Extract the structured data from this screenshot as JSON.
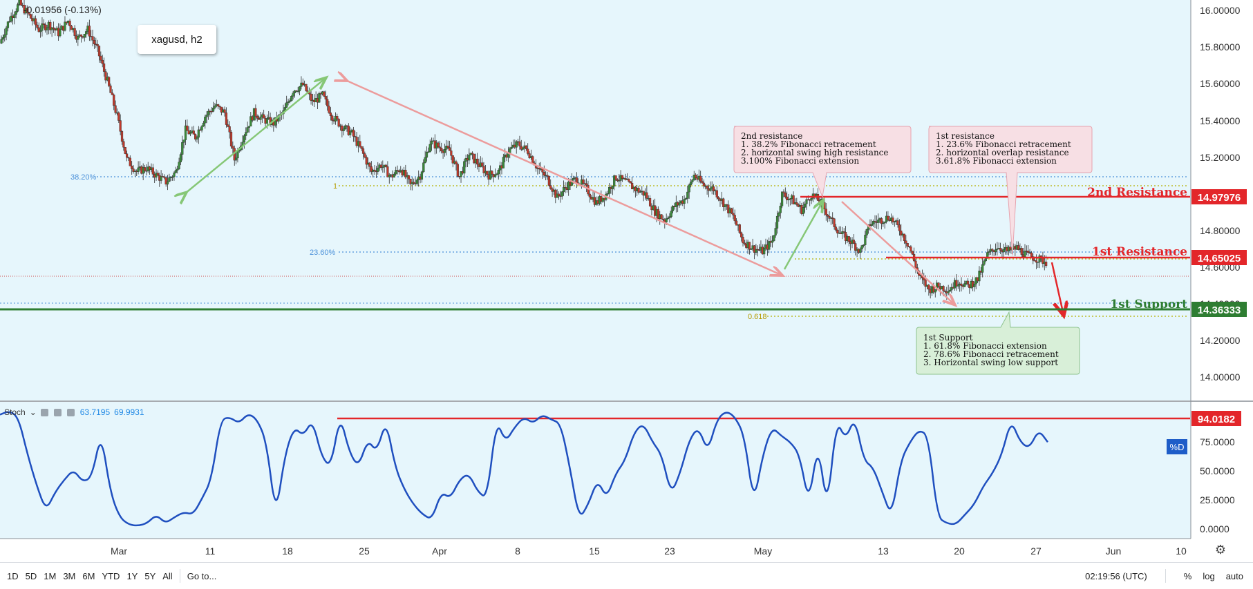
{
  "header": {
    "change_text": "-0.01956 (-0.13%)",
    "symbol": "xagusd, h2"
  },
  "stoch_legend": {
    "name": "Stoch",
    "value1": "63.7195",
    "value2": "69.9931"
  },
  "colors": {
    "background": "#e6f6fc",
    "up": "#3a8a3a",
    "down": "#c0392b",
    "resistance": "#e3262a",
    "support": "#2e7d32",
    "stoch_line": "#1f4fbf",
    "fib_blue": "#4a90d9",
    "fib_gold": "#b59b00"
  },
  "chart_data": [
    {
      "type": "candlestick",
      "title": "xagusd, h2",
      "x_ticks": [
        "Mar",
        "11",
        "18",
        "25",
        "Apr",
        "8",
        "15",
        "23",
        "May",
        "13",
        "20",
        "27",
        "Jun",
        "10"
      ],
      "y_ticks": [
        "16.00000",
        "15.80000",
        "15.60000",
        "15.40000",
        "15.20000",
        "14.80000",
        "14.60000",
        "14.40000",
        "14.20000",
        "14.00000"
      ],
      "ylim": [
        13.88,
        16.03
      ],
      "close_path": [
        15.82,
        15.96,
        16.05,
        15.98,
        15.9,
        15.93,
        15.88,
        15.95,
        15.85,
        15.9,
        15.78,
        15.6,
        15.4,
        15.15,
        15.08,
        15.1,
        15.06,
        15.02,
        15.08,
        15.32,
        15.28,
        15.4,
        15.46,
        15.42,
        15.15,
        15.3,
        15.42,
        15.38,
        15.36,
        15.42,
        15.55,
        15.58,
        15.48,
        15.52,
        15.4,
        15.34,
        15.3,
        15.2,
        15.08,
        15.12,
        15.05,
        15.1,
        15.0,
        15.06,
        15.25,
        15.22,
        15.2,
        15.05,
        15.18,
        15.12,
        15.06,
        15.08,
        15.2,
        15.24,
        15.2,
        15.1,
        15.04,
        14.93,
        15.0,
        15.04,
        14.98,
        14.9,
        14.95,
        15.05,
        15.02,
        14.98,
        14.95,
        14.85,
        14.8,
        14.88,
        14.92,
        15.06,
        15.0,
        14.98,
        14.9,
        14.82,
        14.68,
        14.64,
        14.62,
        14.68,
        14.95,
        14.92,
        14.86,
        14.95,
        14.9,
        14.8,
        14.72,
        14.68,
        14.62,
        14.78,
        14.8,
        14.82,
        14.75,
        14.65,
        14.48,
        14.4,
        14.42,
        14.4,
        14.45,
        14.42,
        14.46,
        14.6,
        14.65,
        14.62,
        14.64,
        14.6,
        14.58,
        14.56
      ],
      "levels": [
        {
          "label": "2nd Resistance",
          "value": 14.97976,
          "value_text": "14.97976"
        },
        {
          "label": "1st Resistance",
          "value": 14.65025,
          "value_text": "14.65025"
        },
        {
          "label": "1st Support",
          "value": 14.36333,
          "value_text": "14.36333"
        }
      ],
      "fib_levels": [
        {
          "label": "38.20%",
          "value": 15.085
        },
        {
          "label": "1",
          "value": 15.035
        },
        {
          "label": "23.60%",
          "value": 14.665
        },
        {
          "label": "0.618",
          "value": 14.325
        }
      ],
      "current_price_line": 14.535,
      "annotations": [
        {
          "lines": [
            "2nd resistance",
            "1. 38.2% Fibonacci retracement",
            "2. horizontal swing high resistance",
            "3.100% Fibonacci extension"
          ]
        },
        {
          "lines": [
            "1st resistance",
            "1. 23.6% Fibonacci retracement",
            "2. horizontal overlap resistance",
            "3.61.8% Fibonacci extension"
          ]
        },
        {
          "lines": [
            "1st Support",
            "1. 61.8% Fibonacci extension",
            "2. 78.6% Fibonacci retracement",
            "3. Horizontal swing low support"
          ]
        }
      ]
    },
    {
      "type": "line",
      "title": "Stoch",
      "y_ticks": [
        "75.0000",
        "50.0000",
        "25.0000",
        "0.0000"
      ],
      "ylim": [
        -5,
        100
      ],
      "level": {
        "value": 94.0182,
        "value_text": "94.0182"
      },
      "series": [
        {
          "name": "%D",
          "values": [
            92,
            95,
            90,
            60,
            35,
            15,
            30,
            40,
            48,
            38,
            42,
            78,
            30,
            10,
            4,
            3,
            5,
            12,
            5,
            10,
            14,
            12,
            25,
            40,
            88,
            90,
            85,
            93,
            88,
            70,
            10,
            60,
            82,
            75,
            88,
            58,
            50,
            92,
            62,
            50,
            72,
            62,
            88,
            50,
            32,
            20,
            12,
            8,
            30,
            25,
            40,
            45,
            30,
            25,
            88,
            70,
            82,
            90,
            85,
            92,
            88,
            85,
            50,
            8,
            20,
            40,
            25,
            45,
            55,
            78,
            85,
            70,
            60,
            28,
            45,
            72,
            82,
            62,
            88,
            95,
            90,
            75,
            20,
            60,
            82,
            75,
            70,
            60,
            20,
            70,
            15,
            88,
            72,
            90,
            55,
            50,
            30,
            10,
            55,
            70,
            80,
            75,
            10,
            5,
            4,
            12,
            20,
            35,
            45,
            60,
            88,
            70,
            65,
            80,
            70
          ]
        }
      ]
    }
  ],
  "bottom_bar": {
    "ranges": [
      "1D",
      "5D",
      "1M",
      "3M",
      "6M",
      "YTD",
      "1Y",
      "5Y",
      "All"
    ],
    "goto": "Go to...",
    "time": "02:19:56 (UTC)",
    "pct": "%",
    "log": "log",
    "auto": "auto"
  }
}
